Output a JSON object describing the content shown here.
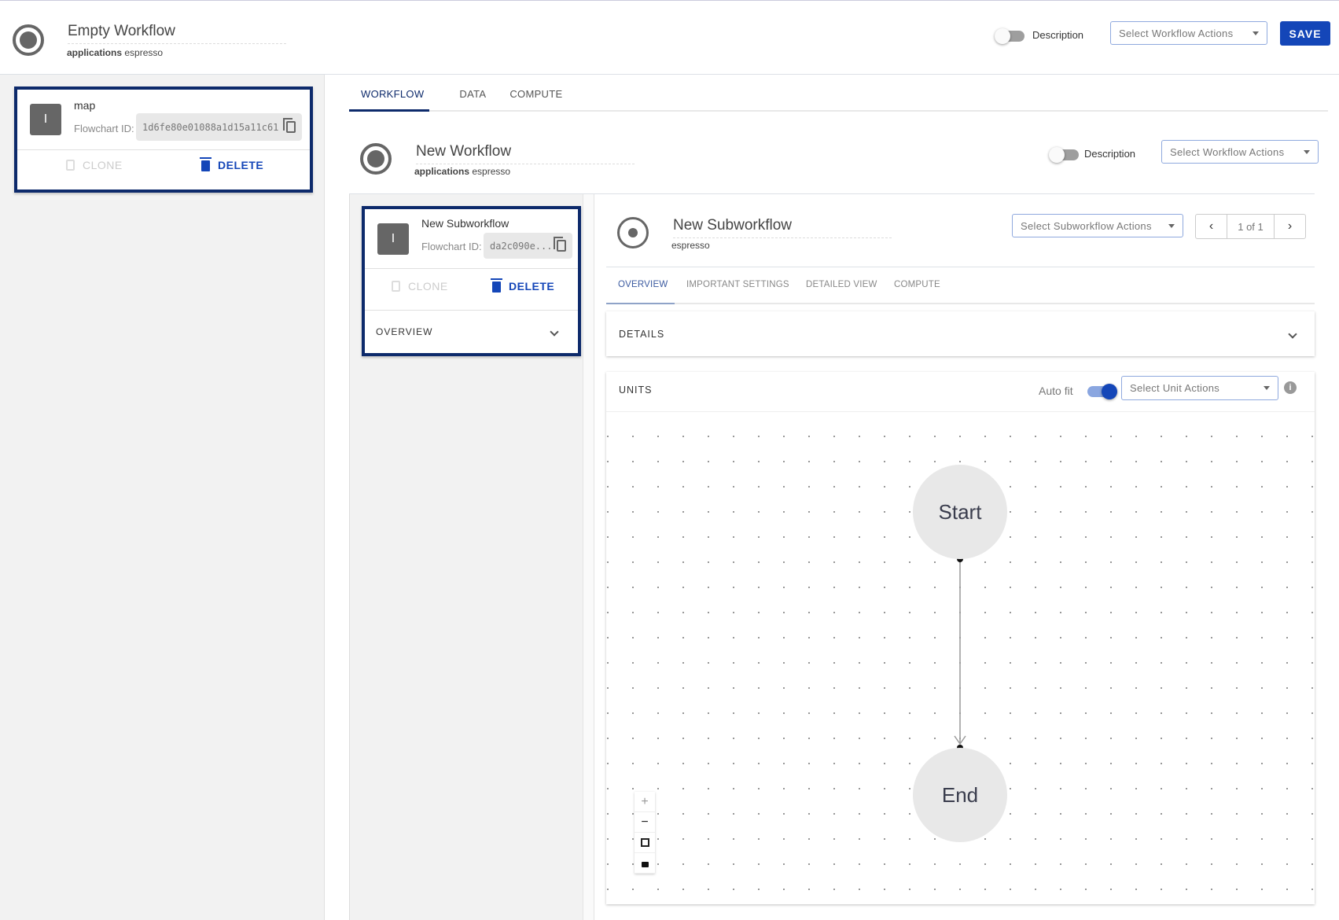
{
  "header": {
    "title": "Empty Workflow",
    "sub_bold": "applications",
    "sub": "espresso",
    "description_label": "Description",
    "actions_placeholder": "Select Workflow Actions",
    "save_label": "SAVE"
  },
  "flowchart_card": {
    "avatar": "I",
    "name": "map",
    "id_label": "Flowchart ID:",
    "id": "1d6fe80e01088a1d15a11c61",
    "clone": "CLONE",
    "delete": "DELETE"
  },
  "tabs": [
    {
      "label": "WORKFLOW",
      "active": true
    },
    {
      "label": "DATA"
    },
    {
      "label": "COMPUTE"
    }
  ],
  "workflow": {
    "title": "New Workflow",
    "sub_bold": "applications",
    "sub": "espresso",
    "description_label": "Description",
    "actions_placeholder": "Select Workflow Actions"
  },
  "subworkflow_card": {
    "avatar": "I",
    "name": "New Subworkflow",
    "id_label": "Flowchart ID:",
    "id": "da2c090e...",
    "clone": "CLONE",
    "delete": "DELETE",
    "overview": "OVERVIEW"
  },
  "subworkflow": {
    "title": "New Subworkflow",
    "sub": "espresso",
    "actions_placeholder": "Select Subworkflow Actions",
    "pager": "1 of 1",
    "prev": "‹",
    "next": "›"
  },
  "subtabs": [
    {
      "label": "OVERVIEW",
      "active": true
    },
    {
      "label": "IMPORTANT SETTINGS"
    },
    {
      "label": "DETAILED VIEW"
    },
    {
      "label": "COMPUTE"
    }
  ],
  "details": {
    "label": "DETAILS"
  },
  "units": {
    "label": "UNITS",
    "autofit_label": "Auto fit",
    "autofit_on": true,
    "actions_placeholder": "Select Unit Actions"
  },
  "graph": {
    "nodes": [
      "Start",
      "End"
    ]
  },
  "zoom_controls": {
    "zoom_in": "+",
    "zoom_out": "−"
  },
  "colors": {
    "primary": "#1446b8",
    "card_border": "#0d2a6b"
  }
}
